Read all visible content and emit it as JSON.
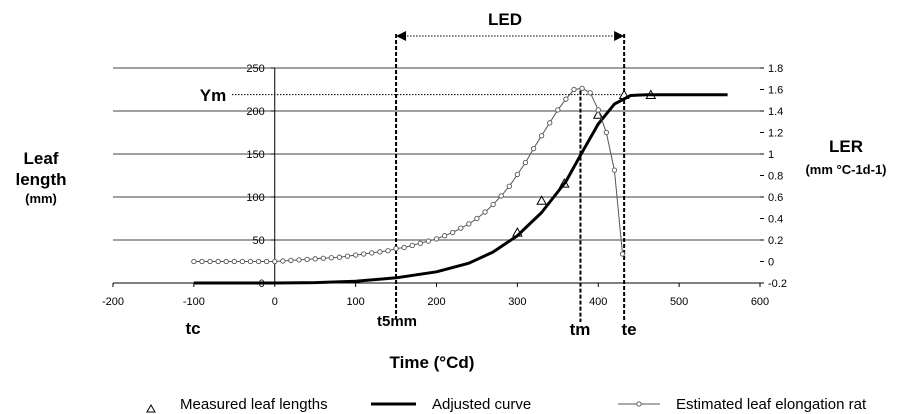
{
  "chart_data": {
    "type": "line",
    "title": "",
    "xlabel": "Time (°Cd)",
    "ylabel_left": [
      "Leaf",
      "length",
      "(mm)"
    ],
    "ylabel_right": [
      "LER",
      "(mm °C-1d-1)"
    ],
    "xlim": [
      -200,
      600
    ],
    "xticks": [
      -200,
      -100,
      0,
      100,
      200,
      300,
      400,
      500,
      600
    ],
    "ylim_left": [
      0,
      250
    ],
    "yticks_left": [
      0,
      50,
      100,
      150,
      200,
      250
    ],
    "ylim_right": [
      -0.2,
      1.8
    ],
    "yticks_right": [
      -0.2,
      0,
      0.2,
      0.4,
      0.6,
      0.8,
      1,
      1.2,
      1.4,
      1.6,
      1.8
    ],
    "grid": "horizontal",
    "series": [
      {
        "name": "Measured leaf lengths",
        "axis": "left",
        "marker": "triangle",
        "x": [
          300,
          330,
          358,
          400,
          432,
          465
        ],
        "y": [
          58,
          95,
          115,
          195,
          218,
          218
        ]
      },
      {
        "name": "Adjusted curve",
        "axis": "left",
        "marker": "none",
        "x": [
          -100,
          0,
          50,
          100,
          150,
          200,
          240,
          270,
          300,
          330,
          360,
          380,
          400,
          420,
          440,
          460,
          500,
          560
        ],
        "y": [
          0,
          0,
          0.5,
          2,
          6,
          13,
          23,
          36,
          55,
          82,
          118,
          152,
          185,
          208,
          218,
          219,
          219,
          219
        ]
      },
      {
        "name": "Estimated leaf elongation rate",
        "axis": "right",
        "marker": "circle",
        "x": [
          -100,
          -90,
          -80,
          -70,
          -60,
          -50,
          -40,
          -30,
          -20,
          -10,
          0,
          10,
          20,
          30,
          40,
          50,
          60,
          70,
          80,
          90,
          100,
          110,
          120,
          130,
          140,
          150,
          160,
          170,
          180,
          190,
          200,
          210,
          220,
          230,
          240,
          250,
          260,
          270,
          280,
          290,
          300,
          310,
          320,
          330,
          340,
          350,
          360,
          370,
          380,
          390,
          400,
          410,
          420,
          430
        ],
        "y": [
          0,
          0,
          0,
          0,
          0,
          0,
          0,
          0,
          0,
          0,
          0,
          0.005,
          0.01,
          0.015,
          0.02,
          0.025,
          0.03,
          0.035,
          0.04,
          0.05,
          0.06,
          0.07,
          0.08,
          0.09,
          0.1,
          0.12,
          0.13,
          0.15,
          0.17,
          0.19,
          0.21,
          0.24,
          0.27,
          0.31,
          0.35,
          0.4,
          0.46,
          0.53,
          0.61,
          0.7,
          0.81,
          0.92,
          1.05,
          1.17,
          1.29,
          1.41,
          1.51,
          1.6,
          1.61,
          1.57,
          1.41,
          1.2,
          0.85,
          0.07
        ]
      }
    ],
    "annotations": {
      "LED": "LED",
      "Ym": "Ym",
      "tc": "tc",
      "t5mm": "t5mm",
      "tm": "tm",
      "te": "te"
    },
    "markers_x": {
      "t5mm": 150,
      "tm": 378,
      "te": 432
    },
    "markers_y": {
      "Ym": 219
    },
    "legend_position": "bottom",
    "legend": [
      "Measured leaf lengths",
      "Adjusted curve",
      "Estimated leaf elongation rat"
    ]
  }
}
